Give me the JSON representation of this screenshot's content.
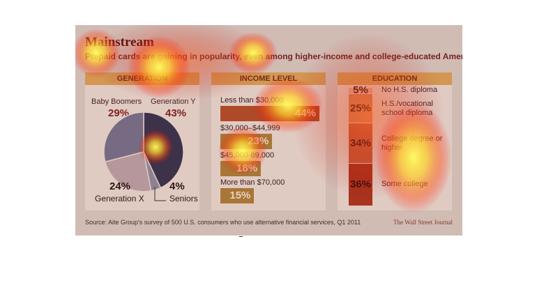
{
  "title": "Mainstream",
  "subtitle": "Prepaid cards are gaining in popularity, even among higher-income and college-educated Americans",
  "panels": {
    "generation": "GENERATION",
    "income": "INCOME LEVEL",
    "education": "EDUCATION"
  },
  "source": "Source: Aite Group's survey of 500 U.S. consumers who use alternative financial services, Q1 2011",
  "publisher": "The Wall Street Journal",
  "colors": {
    "pie_generation_y": "#2e3550",
    "pie_seniors": "#8a8fa0",
    "pie_generation_x": "#b7a8ad",
    "pie_baby_boomers": "#6f7690",
    "income_bar": "#a8823a",
    "edu_no_hs": "#e9b79a",
    "edu_hs": "#d58a5a",
    "edu_college_degree": "#c3603a",
    "edu_some_college": "#a8361e",
    "accent_red": "#7a1f1f"
  },
  "chart_data": [
    {
      "type": "pie",
      "title": "GENERATION",
      "slices": [
        {
          "label": "Generation Y",
          "value": 43
        },
        {
          "label": "Seniors",
          "value": 4
        },
        {
          "label": "Generation X",
          "value": 24
        },
        {
          "label": "Baby Boomers",
          "value": 29
        }
      ],
      "value_labels": [
        "43%",
        "4%",
        "24%",
        "29%"
      ]
    },
    {
      "type": "bar",
      "title": "INCOME LEVEL",
      "orientation": "horizontal",
      "categories": [
        "Less than $30,000",
        "$30,000–$44,999",
        "$45,000-69,000",
        "More than $70,000"
      ],
      "values": [
        44,
        23,
        18,
        15
      ],
      "value_labels": [
        "44%",
        "23%",
        "18%",
        "15%"
      ]
    },
    {
      "type": "bar",
      "title": "EDUCATION",
      "orientation": "stacked-vertical",
      "categories": [
        "No H.S. diploma",
        "H.S./vocational school diploma",
        "College degree or higher",
        "Some college"
      ],
      "values": [
        5,
        25,
        34,
        36
      ],
      "value_labels": [
        "5%",
        "25%",
        "34%",
        "36%"
      ]
    }
  ]
}
